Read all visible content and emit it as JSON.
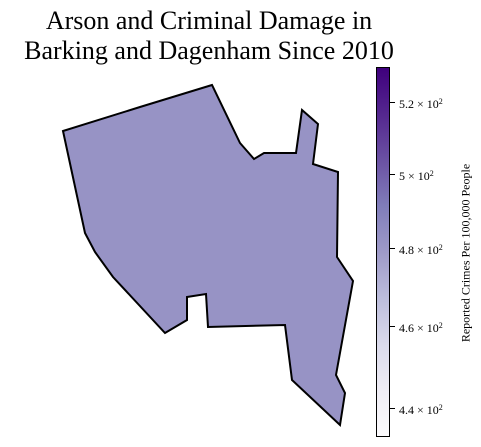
{
  "title_lines": [
    "Arson and Criminal Damage in",
    "Barking and Dagenham Since 2010"
  ],
  "map": {
    "region_fill": "#9793c5",
    "region_value": 475
  },
  "colorbar": {
    "label": "Reported Crimes Per 100,000 People",
    "min": 433,
    "max": 530,
    "scale": "log",
    "colormap": [
      "#fcfbfd",
      "#efedf5",
      "#dadaeb",
      "#bcbddc",
      "#9e9ac8",
      "#807dba",
      "#6a51a3",
      "#54278f",
      "#3f007d"
    ],
    "ticks": [
      {
        "value": 440,
        "mantissa": "4.4",
        "exp": "2"
      },
      {
        "value": 460,
        "mantissa": "4.6",
        "exp": "2"
      },
      {
        "value": 480,
        "mantissa": "4.8",
        "exp": "2"
      },
      {
        "value": 500,
        "mantissa": "5",
        "exp": "2"
      },
      {
        "value": 520,
        "mantissa": "5.2",
        "exp": "2"
      }
    ]
  }
}
